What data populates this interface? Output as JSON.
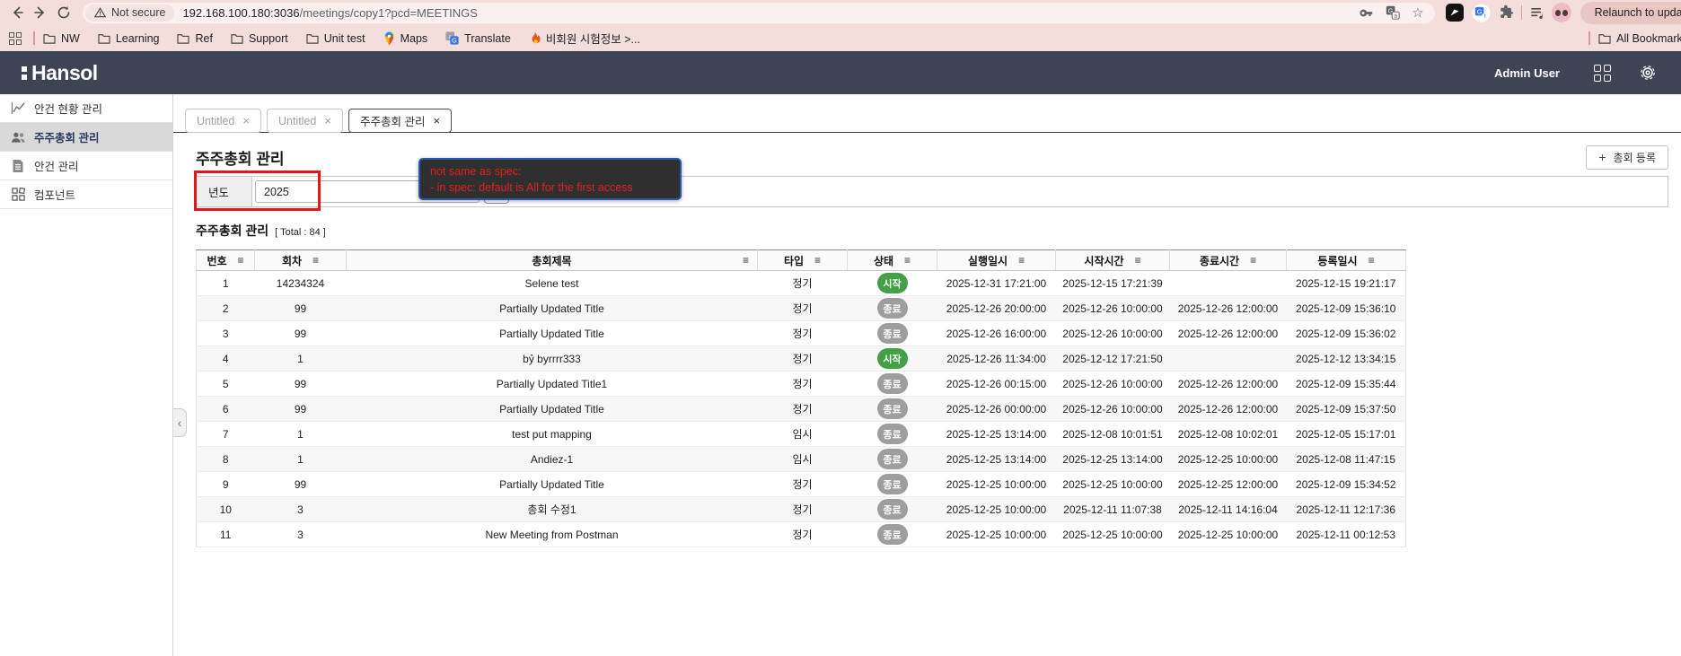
{
  "browser": {
    "security_label": "Not secure",
    "url_host": "192.168.100.180:3036",
    "url_path": "/meetings/copy1?pcd=MEETINGS",
    "relaunch_label": "Relaunch to update",
    "bookmarks": [
      {
        "label": "NW",
        "icon": "folder-icon"
      },
      {
        "label": "Learning",
        "icon": "folder-icon"
      },
      {
        "label": "Ref",
        "icon": "folder-icon"
      },
      {
        "label": "Support",
        "icon": "folder-icon"
      },
      {
        "label": "Unit test",
        "icon": "folder-icon"
      },
      {
        "label": "Maps",
        "icon": "maps-pin-icon"
      },
      {
        "label": "Translate",
        "icon": "translate-icon"
      },
      {
        "label": "비회원 시험정보 >...",
        "icon": "flame-icon"
      }
    ],
    "all_bookmarks_label": "All Bookmarks"
  },
  "header": {
    "brand": "Hansol",
    "user": "Admin User"
  },
  "sidebar": {
    "items": [
      {
        "label": "안건 현황 관리",
        "icon": "chart-line-icon",
        "active": false
      },
      {
        "label": "주주총회 관리",
        "icon": "people-icon",
        "active": true
      },
      {
        "label": "안건 관리",
        "icon": "document-icon",
        "active": false
      },
      {
        "label": "컴포넌트",
        "icon": "components-icon",
        "active": false
      }
    ]
  },
  "tabs": [
    {
      "label": "Untitled",
      "active": false
    },
    {
      "label": "Untitled",
      "active": false
    },
    {
      "label": "주주총회 관리",
      "active": true
    }
  ],
  "page": {
    "title": "주주총회 관리",
    "register_label": "총회 등록",
    "filter": {
      "year_label": "년도",
      "year_value": "2025"
    },
    "annotation": {
      "line1": "not same as spec:",
      "line2": "- in spec: default is All for the first access"
    },
    "section_title": "주주총회 관리",
    "total_label": "[ Total : 84 ]"
  },
  "table": {
    "columns": [
      "번호",
      "회차",
      "총회제목",
      "타입",
      "상태",
      "실행일시",
      "시작시간",
      "종료시간",
      "등록일시"
    ],
    "rows": [
      {
        "no": "1",
        "round": "14234324",
        "title": "Selene test",
        "type": "정기",
        "status": "시작",
        "status_kind": "started",
        "exec_at": "2025-12-31 17:21:00",
        "start_at": "2025-12-15 17:21:39",
        "end_at": "",
        "created_at": "2025-12-15 19:21:17"
      },
      {
        "no": "2",
        "round": "99",
        "title": "Partially Updated Title",
        "type": "정기",
        "status": "종료",
        "status_kind": "ended",
        "exec_at": "2025-12-26 20:00:00",
        "start_at": "2025-12-26 10:00:00",
        "end_at": "2025-12-26 12:00:00",
        "created_at": "2025-12-09 15:36:10"
      },
      {
        "no": "3",
        "round": "99",
        "title": "Partially Updated Title",
        "type": "정기",
        "status": "종료",
        "status_kind": "ended",
        "exec_at": "2025-12-26 16:00:00",
        "start_at": "2025-12-26 10:00:00",
        "end_at": "2025-12-26 12:00:00",
        "created_at": "2025-12-09 15:36:02"
      },
      {
        "no": "4",
        "round": "1",
        "title": "bỷ byrrrr333",
        "type": "정기",
        "status": "시작",
        "status_kind": "started",
        "exec_at": "2025-12-26 11:34:00",
        "start_at": "2025-12-12 17:21:50",
        "end_at": "",
        "created_at": "2025-12-12 13:34:15"
      },
      {
        "no": "5",
        "round": "99",
        "title": "Partially Updated Title1",
        "type": "정기",
        "status": "종료",
        "status_kind": "ended",
        "exec_at": "2025-12-26 00:15:00",
        "start_at": "2025-12-26 10:00:00",
        "end_at": "2025-12-26 12:00:00",
        "created_at": "2025-12-09 15:35:44"
      },
      {
        "no": "6",
        "round": "99",
        "title": "Partially Updated Title",
        "type": "정기",
        "status": "종료",
        "status_kind": "ended",
        "exec_at": "2025-12-26 00:00:00",
        "start_at": "2025-12-26 10:00:00",
        "end_at": "2025-12-26 12:00:00",
        "created_at": "2025-12-09 15:37:50"
      },
      {
        "no": "7",
        "round": "1",
        "title": "test put mapping",
        "type": "임시",
        "status": "종료",
        "status_kind": "ended",
        "exec_at": "2025-12-25 13:14:00",
        "start_at": "2025-12-08 10:01:51",
        "end_at": "2025-12-08 10:02:01",
        "created_at": "2025-12-05 15:17:01"
      },
      {
        "no": "8",
        "round": "1",
        "title": "Andiez-1",
        "type": "임시",
        "status": "종료",
        "status_kind": "ended",
        "exec_at": "2025-12-25 13:14:00",
        "start_at": "2025-12-25 13:14:00",
        "end_at": "2025-12-25 10:00:00",
        "created_at": "2025-12-08 11:47:15"
      },
      {
        "no": "9",
        "round": "99",
        "title": "Partially Updated Title",
        "type": "정기",
        "status": "종료",
        "status_kind": "ended",
        "exec_at": "2025-12-25 10:00:00",
        "start_at": "2025-12-25 10:00:00",
        "end_at": "2025-12-25 12:00:00",
        "created_at": "2025-12-09 15:34:52"
      },
      {
        "no": "10",
        "round": "3",
        "title": "총회 수정1",
        "type": "정기",
        "status": "종료",
        "status_kind": "ended",
        "exec_at": "2025-12-25 10:00:00",
        "start_at": "2025-12-11 11:07:38",
        "end_at": "2025-12-11 14:16:04",
        "created_at": "2025-12-11 12:17:36"
      },
      {
        "no": "11",
        "round": "3",
        "title": "New Meeting from Postman",
        "type": "정기",
        "status": "종료",
        "status_kind": "ended",
        "exec_at": "2025-12-25 10:00:00",
        "start_at": "2025-12-25 10:00:00",
        "end_at": "2025-12-25 10:00:00",
        "created_at": "2025-12-11 00:12:53"
      }
    ]
  },
  "colors": {
    "badge_started": "#43a047",
    "badge_ended": "#9e9e9e",
    "header_navy": "#3e4454",
    "chrome_pink": "#f3dedc",
    "annotation_text_red": "#e02020",
    "annotation_border_blue": "#2a56b0",
    "highlight_red": "#dc1a1a"
  }
}
